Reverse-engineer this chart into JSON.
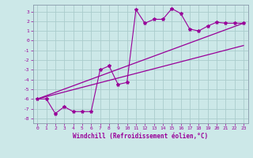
{
  "xlabel": "Windchill (Refroidissement éolien,°C)",
  "bg_color": "#cce8e8",
  "grid_color": "#aacccc",
  "line_color": "#990099",
  "spine_color": "#8899aa",
  "xlim": [
    -0.5,
    23.5
  ],
  "ylim": [
    -8.5,
    3.7
  ],
  "yticks": [
    3,
    2,
    1,
    0,
    -1,
    -2,
    -3,
    -4,
    -5,
    -6,
    -7,
    -8
  ],
  "xticks": [
    0,
    1,
    2,
    3,
    4,
    5,
    6,
    7,
    8,
    9,
    10,
    11,
    12,
    13,
    14,
    15,
    16,
    17,
    18,
    19,
    20,
    21,
    22,
    23
  ],
  "curve1_x": [
    0,
    1,
    2,
    3,
    4,
    5,
    6,
    7,
    8,
    9,
    10,
    11,
    12,
    13,
    14,
    15,
    16,
    17,
    18,
    19,
    20,
    21,
    22,
    23
  ],
  "curve1_y": [
    -6.0,
    -6.0,
    -7.5,
    -6.8,
    -7.3,
    -7.3,
    -7.3,
    -3.0,
    -2.6,
    -4.5,
    -4.3,
    3.2,
    1.8,
    2.2,
    2.2,
    3.3,
    2.8,
    1.2,
    1.0,
    1.5,
    1.9,
    1.8,
    1.8,
    1.8
  ],
  "curve2_x": [
    0,
    23
  ],
  "curve2_y": [
    -6.0,
    -0.5
  ],
  "curve3_x": [
    0,
    23
  ],
  "curve3_y": [
    -6.0,
    1.8
  ]
}
